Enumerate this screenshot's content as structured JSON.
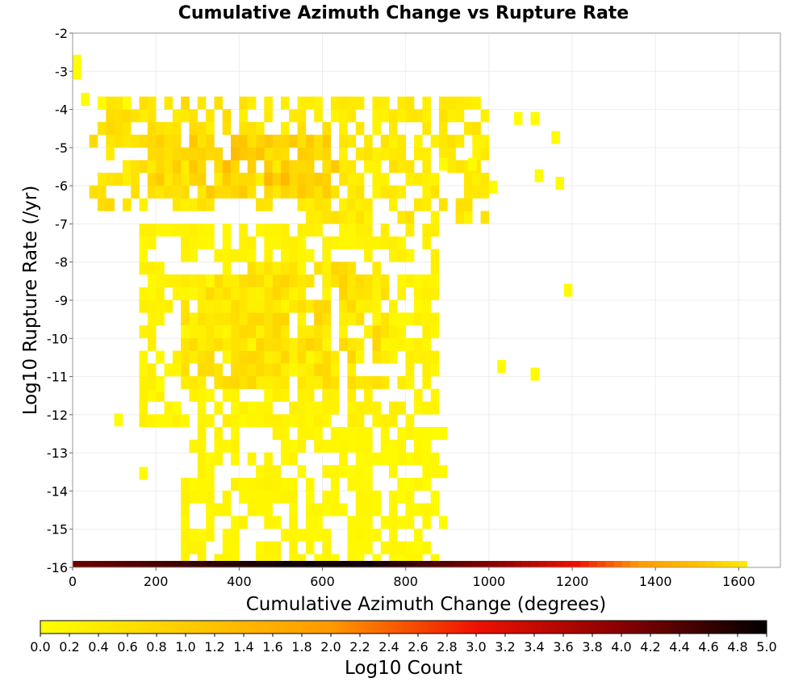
{
  "chart_data": {
    "type": "heatmap",
    "title": "Cumulative Azimuth Change vs Rupture Rate",
    "xlabel": "Cumulative Azimuth Change (degrees)",
    "ylabel": "Log10 Rupture Rate (/yr)",
    "xlim": [
      0,
      1700
    ],
    "ylim": [
      -16,
      -2
    ],
    "x_ticks": [
      "0",
      "200",
      "400",
      "600",
      "800",
      "1000",
      "1200",
      "1400",
      "1600"
    ],
    "y_ticks": [
      "-2",
      "-3",
      "-4",
      "-5",
      "-6",
      "-7",
      "-8",
      "-9",
      "-10",
      "-11",
      "-12",
      "-13",
      "-14",
      "-15",
      "-16"
    ],
    "grid": true,
    "x_bin_width": 20,
    "y_bin_height": 0.333,
    "colorbar": {
      "label": "Log10 Count",
      "range": [
        0,
        5
      ],
      "ticks": [
        "0.0",
        "0.2",
        "0.4",
        "0.6",
        "0.8",
        "1.0",
        "1.2",
        "1.4",
        "1.6",
        "1.8",
        "2.0",
        "2.2",
        "2.4",
        "2.6",
        "2.8",
        "3.0",
        "3.2",
        "3.4",
        "3.6",
        "3.8",
        "4.0",
        "4.2",
        "4.4",
        "4.6",
        "4.8",
        "5.0"
      ],
      "colors": [
        "#ffff00",
        "#ffcc00",
        "#ff9900",
        "#ee1100",
        "#880000",
        "#000000"
      ]
    },
    "bottom_row": {
      "y": -16,
      "points": [
        [
          0,
          4.2
        ],
        [
          500,
          4.9
        ],
        [
          700,
          4.9
        ],
        [
          1000,
          4.0
        ],
        [
          1200,
          3.0
        ],
        [
          1350,
          2.0
        ],
        [
          1500,
          1.2
        ],
        [
          1620,
          0.3
        ]
      ]
    },
    "clusters": [
      {
        "x": [
          40,
          560
        ],
        "y": [
          -6.8,
          -4.0
        ],
        "level": 0.6
      },
      {
        "x": [
          200,
          640
        ],
        "y": [
          -6.2,
          -4.6
        ],
        "level": 0.85
      },
      {
        "x": [
          350,
          580
        ],
        "y": [
          -6.0,
          -4.9
        ],
        "level": 1.05
      },
      {
        "x": [
          540,
          1000
        ],
        "y": [
          -7.0,
          -4.0
        ],
        "level": 0.45
      },
      {
        "x": [
          260,
          520
        ],
        "y": [
          -11.2,
          -8.4
        ],
        "level": 0.55
      },
      {
        "x": [
          380,
          760
        ],
        "y": [
          -11.4,
          -8.3
        ],
        "level": 0.65
      },
      {
        "x": [
          160,
          880
        ],
        "y": [
          -12.4,
          -7.3
        ],
        "level": 0.25
      },
      {
        "x": [
          250,
          560
        ],
        "y": [
          -15.9,
          -12.2
        ],
        "level": 0.2
      },
      {
        "x": [
          560,
          900
        ],
        "y": [
          -15.9,
          -12.3
        ],
        "level": 0.15
      }
    ],
    "outliers": [
      [
        0,
        -3.2
      ],
      [
        0,
        -2.9
      ],
      [
        1180,
        -8.9
      ],
      [
        1100,
        -11.1
      ],
      [
        1020,
        -10.9
      ],
      [
        1100,
        -4.4
      ],
      [
        1060,
        -4.4
      ],
      [
        1150,
        -4.9
      ],
      [
        1160,
        -6.1
      ],
      [
        1110,
        -5.9
      ],
      [
        880,
        -5.6
      ],
      [
        950,
        -5.6
      ],
      [
        1000,
        -6.2
      ],
      [
        20,
        -3.9
      ],
      [
        60,
        -4.0
      ],
      [
        120,
        -4.0
      ],
      [
        100,
        -12.3
      ],
      [
        200,
        -11.4
      ],
      [
        240,
        -12.0
      ],
      [
        160,
        -13.7
      ]
    ]
  }
}
